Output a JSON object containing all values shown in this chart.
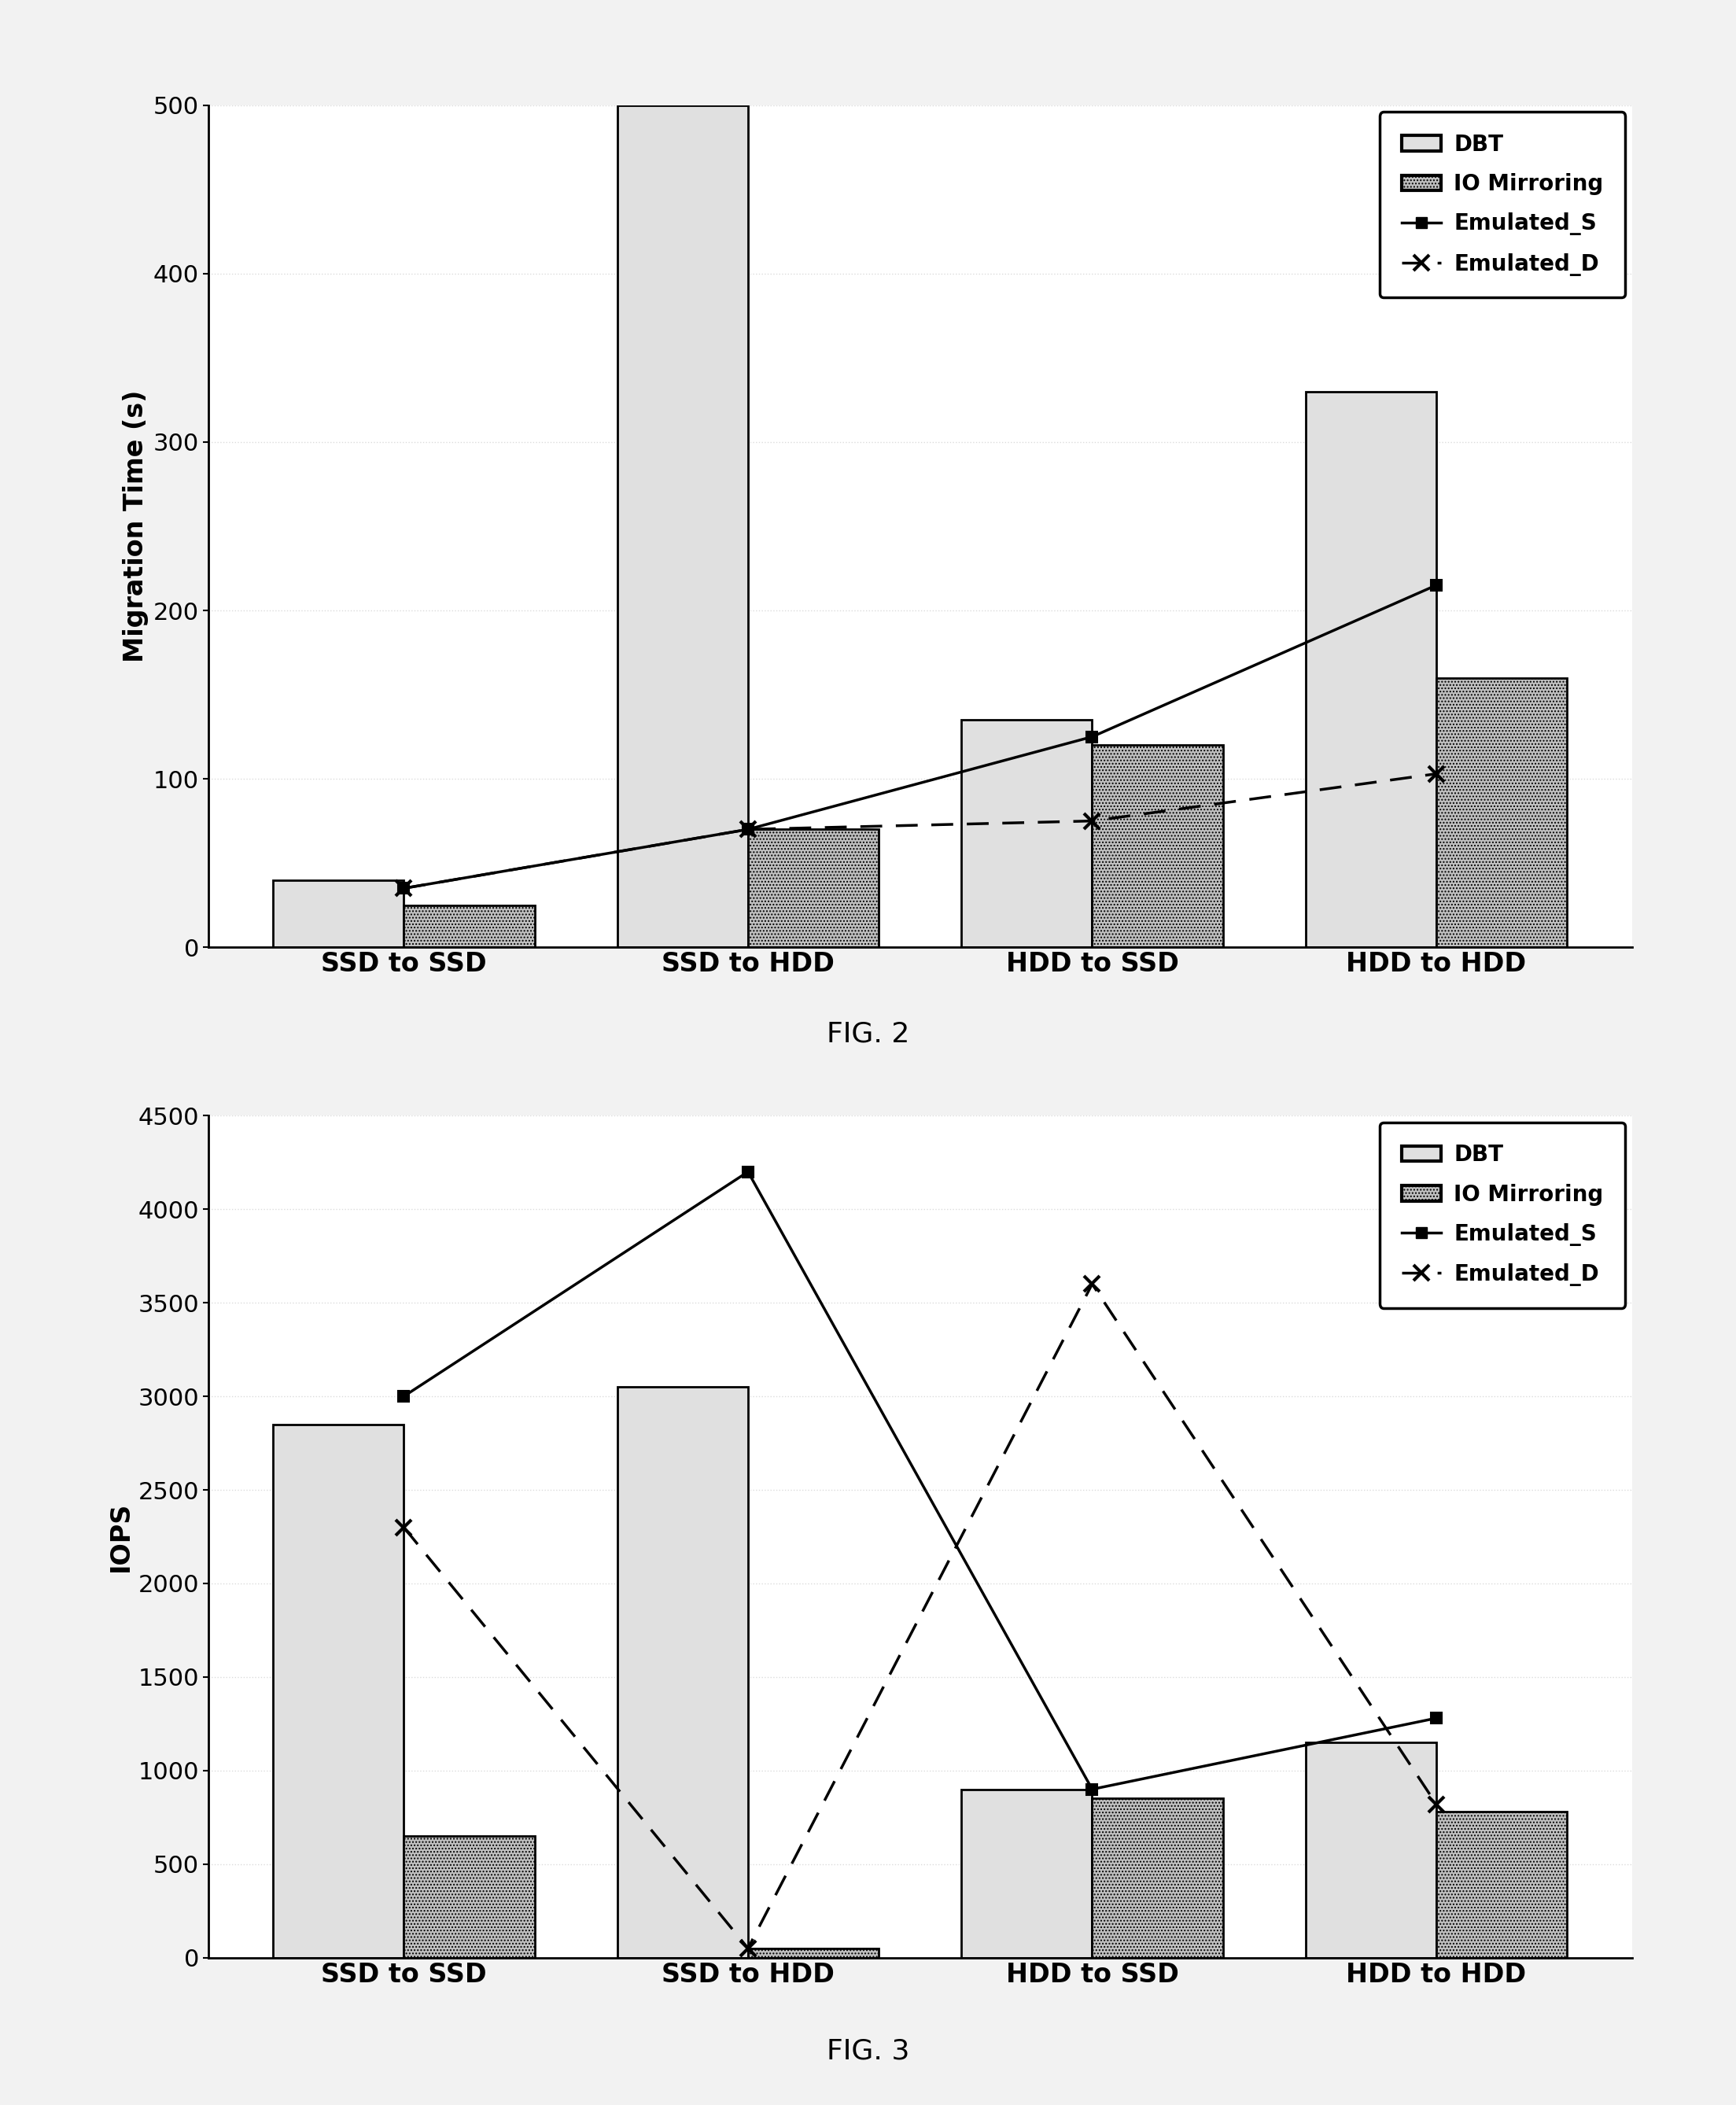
{
  "fig2": {
    "caption": "FIG. 2",
    "ylabel": "Migration Time (s)",
    "categories": [
      "SSD to SSD",
      "SSD to HDD",
      "HDD to SSD",
      "HDD to HDD"
    ],
    "dbt_bars": [
      40,
      500,
      135,
      330
    ],
    "io_bars": [
      25,
      70,
      120,
      160
    ],
    "emulated_s": [
      35,
      70,
      125,
      215
    ],
    "emulated_d": [
      35,
      70,
      75,
      103
    ],
    "ylim": [
      0,
      500
    ],
    "yticks": [
      0,
      100,
      200,
      300,
      400,
      500
    ]
  },
  "fig3": {
    "caption": "FIG. 3",
    "ylabel": "IOPS",
    "categories": [
      "SSD to SSD",
      "SSD to HDD",
      "HDD to SSD",
      "HDD to HDD"
    ],
    "dbt_bars": [
      2850,
      3050,
      900,
      1150
    ],
    "io_bars": [
      650,
      50,
      850,
      780
    ],
    "emulated_s": [
      3000,
      4200,
      900,
      1280
    ],
    "emulated_d": [
      2300,
      50,
      3600,
      820
    ],
    "ylim": [
      0,
      4500
    ],
    "yticks": [
      0,
      500,
      1000,
      1500,
      2000,
      2500,
      3000,
      3500,
      4000,
      4500
    ]
  },
  "bar_width": 0.38,
  "dbt_facecolor": "#e0e0e0",
  "io_facecolor": "#c0c0c0",
  "bg_color": "#ffffff",
  "fig_bg_color": "#f2f2f2",
  "legend_labels": [
    "DBT",
    "IO Mirroring",
    "Emulated_S",
    "Emulated_D"
  ],
  "tick_fontsize": 22,
  "ylabel_fontsize": 24,
  "xlabel_fontsize": 24,
  "caption_fontsize": 26,
  "legend_fontsize": 20,
  "line_width": 2.5,
  "marker_size": 10
}
